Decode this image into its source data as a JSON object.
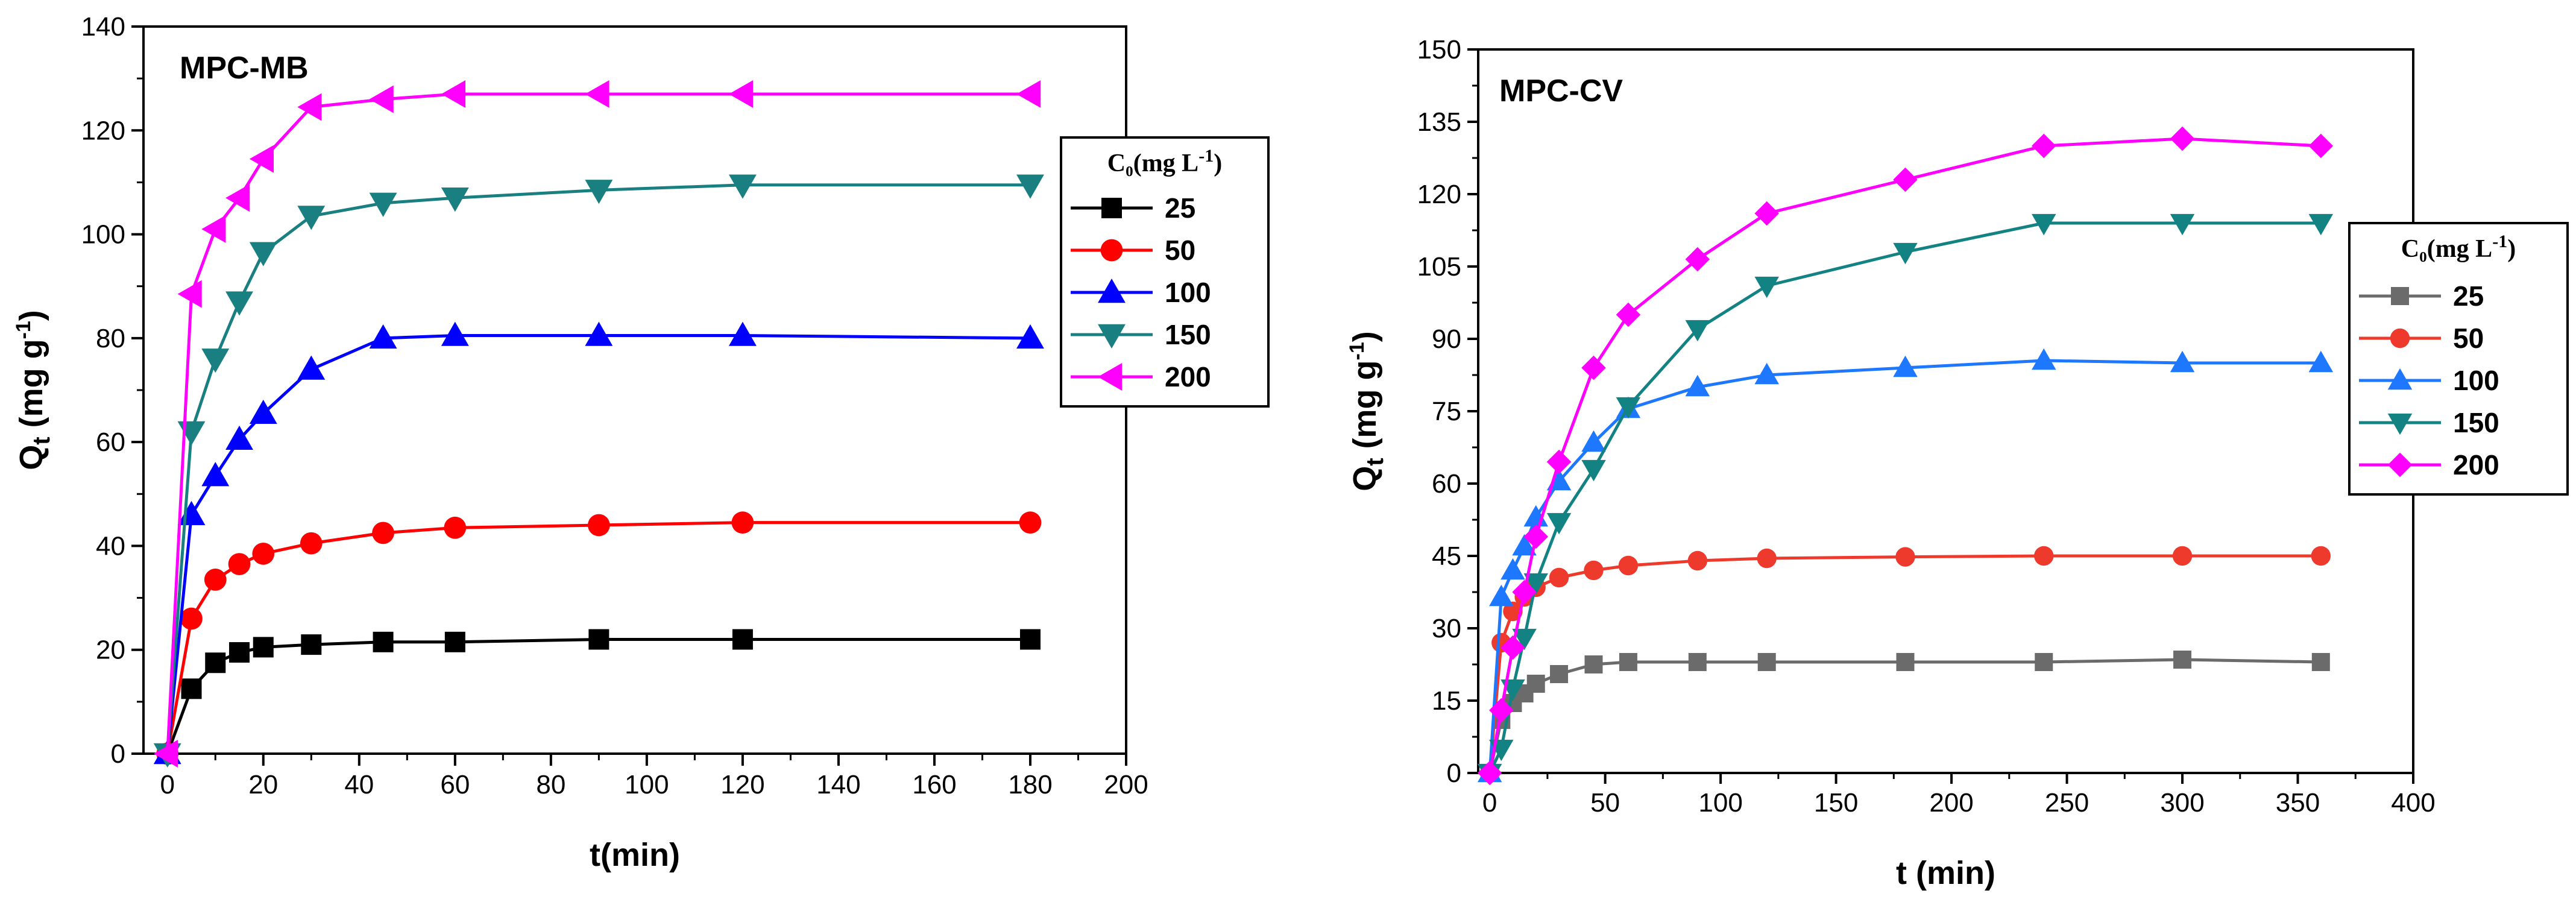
{
  "chart_data": [
    {
      "type": "line",
      "panel_label": "MPC-MB",
      "xlabel": "t(min)",
      "ylabel": "Q_t (mg g^-1)",
      "ylabel_main": "Q",
      "ylabel_sub": "t",
      "ylabel_units": " (mg g",
      "ylabel_sup": "-1",
      "ylabel_close": ")",
      "xlim": [
        -5,
        200
      ],
      "ylim": [
        0,
        140
      ],
      "xticks": [
        0,
        20,
        40,
        60,
        80,
        100,
        120,
        140,
        160,
        180,
        200
      ],
      "yticks": [
        0,
        20,
        40,
        60,
        80,
        100,
        120,
        140
      ],
      "grid": false,
      "legend": {
        "placement": "right",
        "title": "C₀(mg L⁻¹)",
        "title_main": "C₀(mg L",
        "title_sup": "-1",
        "title_close": ")"
      },
      "series": [
        {
          "name": "25",
          "color": "#000000",
          "marker": "square",
          "x": [
            0,
            5,
            10,
            15,
            20,
            30,
            45,
            60,
            90,
            120,
            180
          ],
          "y": [
            0,
            12.5,
            17.5,
            19.5,
            20.5,
            21,
            21.5,
            21.5,
            22,
            22,
            22
          ]
        },
        {
          "name": "50",
          "color": "#ff0000",
          "marker": "circle",
          "x": [
            0,
            5,
            10,
            15,
            20,
            30,
            45,
            60,
            90,
            120,
            180
          ],
          "y": [
            0,
            26,
            33.5,
            36.5,
            38.5,
            40.5,
            42.5,
            43.5,
            44,
            44.5,
            44.5
          ]
        },
        {
          "name": "100",
          "color": "#0000ff",
          "marker": "triangle-up",
          "x": [
            0,
            5,
            10,
            15,
            20,
            30,
            45,
            60,
            90,
            120,
            180
          ],
          "y": [
            0,
            46,
            53.5,
            60.5,
            65.5,
            74,
            80,
            80.5,
            80.5,
            80.5,
            80
          ]
        },
        {
          "name": "150",
          "color": "#1a7f80",
          "marker": "triangle-down",
          "x": [
            0,
            5,
            10,
            15,
            20,
            30,
            45,
            60,
            90,
            120,
            180
          ],
          "y": [
            0,
            62,
            76,
            87,
            96.5,
            103.5,
            106,
            107,
            108.5,
            109.5,
            109.5
          ]
        },
        {
          "name": "200",
          "color": "#ff00ff",
          "marker": "triangle-left",
          "x": [
            0,
            5,
            10,
            15,
            20,
            30,
            45,
            60,
            90,
            120,
            180
          ],
          "y": [
            0,
            88.5,
            101,
            107,
            114.5,
            124.5,
            126,
            127,
            127,
            127,
            127
          ]
        }
      ]
    },
    {
      "type": "line",
      "panel_label": "MPC-CV",
      "xlabel": "t (min)",
      "ylabel": "Q_t (mg g^-1)",
      "ylabel_main": "Q",
      "ylabel_sub": "t",
      "ylabel_units": " (mg g",
      "ylabel_sup": "-1",
      "ylabel_close": ")",
      "xlim": [
        -5,
        400
      ],
      "ylim": [
        0,
        150
      ],
      "xticks": [
        0,
        50,
        100,
        150,
        200,
        250,
        300,
        350,
        400
      ],
      "yticks": [
        0,
        15,
        30,
        45,
        60,
        75,
        90,
        105,
        120,
        135,
        150
      ],
      "grid": false,
      "legend": {
        "placement": "right",
        "title": "C₀(mg L⁻¹)",
        "title_main": "C₀(mg L",
        "title_sup": "-1",
        "title_close": ")"
      },
      "series": [
        {
          "name": "25",
          "color": "#6b6b6b",
          "marker": "square",
          "x": [
            0,
            5,
            10,
            15,
            20,
            30,
            45,
            60,
            90,
            120,
            180,
            240,
            300,
            360
          ],
          "y": [
            0,
            11,
            14.5,
            16.5,
            18.5,
            20.5,
            22.5,
            23,
            23,
            23,
            23,
            23,
            23.5,
            23
          ]
        },
        {
          "name": "50",
          "color": "#ee3a2d",
          "marker": "circle",
          "x": [
            0,
            5,
            10,
            15,
            20,
            30,
            45,
            60,
            90,
            120,
            180,
            240,
            300,
            360
          ],
          "y": [
            0,
            27,
            33.5,
            36.5,
            38.5,
            40.5,
            42,
            43,
            44,
            44.5,
            44.8,
            45,
            45,
            45
          ]
        },
        {
          "name": "100",
          "color": "#1e78ff",
          "marker": "triangle-up",
          "x": [
            0,
            5,
            10,
            15,
            20,
            30,
            45,
            60,
            90,
            120,
            180,
            240,
            300,
            360
          ],
          "y": [
            0,
            36.5,
            42,
            47,
            53,
            60.5,
            68.5,
            75.5,
            80,
            82.5,
            84,
            85.5,
            85,
            85
          ]
        },
        {
          "name": "150",
          "color": "#138282",
          "marker": "triangle-down",
          "x": [
            0,
            5,
            10,
            15,
            20,
            30,
            45,
            60,
            90,
            120,
            180,
            240,
            300,
            360
          ],
          "y": [
            0,
            5,
            17.5,
            28,
            39.5,
            52,
            63,
            76,
            92,
            101,
            108,
            114,
            114,
            114
          ]
        },
        {
          "name": "200",
          "color": "#ff00ff",
          "marker": "diamond",
          "x": [
            0,
            5,
            10,
            15,
            20,
            30,
            45,
            60,
            90,
            120,
            180,
            240,
            300,
            360
          ],
          "y": [
            0,
            13,
            26,
            37.5,
            49,
            64.5,
            84,
            95,
            106.5,
            116,
            123,
            130,
            131.5,
            130
          ]
        }
      ]
    }
  ]
}
